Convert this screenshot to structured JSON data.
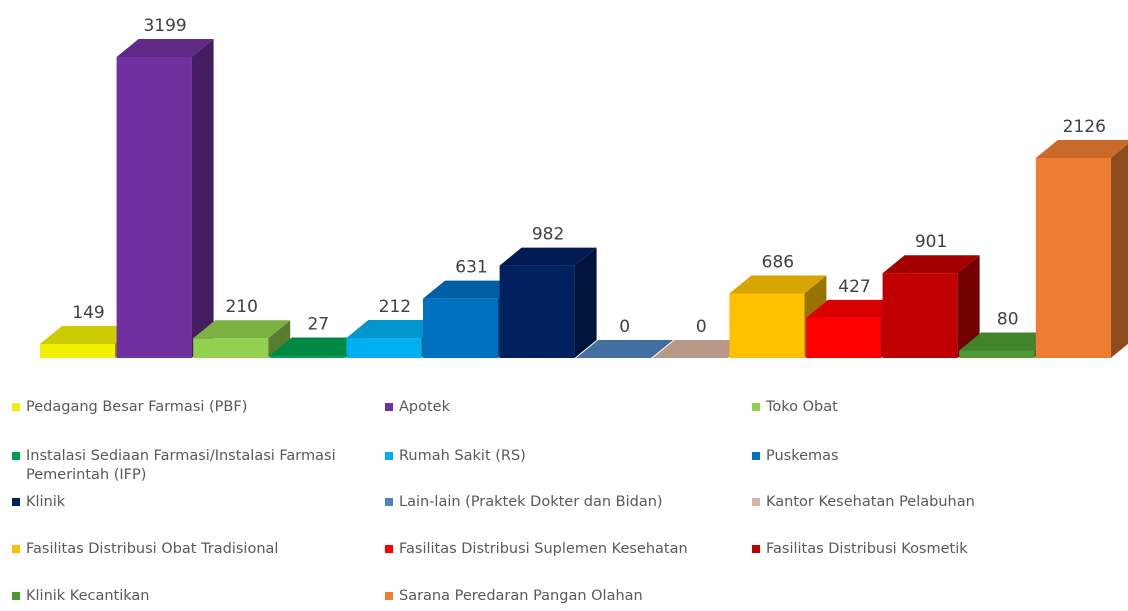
{
  "chart_data": {
    "type": "bar3d",
    "categories": [
      "Pedagang Besar Farmasi (PBF)",
      "Apotek",
      "Toko Obat",
      "Instalasi Sediaan Farmasi/Instalasi Farmasi Pemerintah (IFP)",
      "Rumah Sakit (RS)",
      "Puskemas",
      "Klinik",
      "Lain-lain (Praktek Dokter dan Bidan)",
      "Kantor Kesehatan Pelabuhan",
      "Fasilitas Distribusi Obat Tradisional",
      "Fasilitas Distribusi Suplemen Kesehatan",
      "Fasilitas Distribusi Kosmetik",
      "Klinik Kecantikan",
      "Sarana Peredaran Pangan Olahan"
    ],
    "values": [
      149,
      3199,
      210,
      27,
      212,
      631,
      982,
      0,
      0,
      686,
      427,
      901,
      80,
      2126
    ],
    "colors": [
      "#f0f000",
      "#7030a0",
      "#92d050",
      "#00a050",
      "#00b0f0",
      "#0070c0",
      "#002060",
      "#4f81bd",
      "#d8b4a0",
      "#ffc000",
      "#ff0000",
      "#c00000",
      "#4e9a32",
      "#ed7d31"
    ],
    "legend": true
  }
}
